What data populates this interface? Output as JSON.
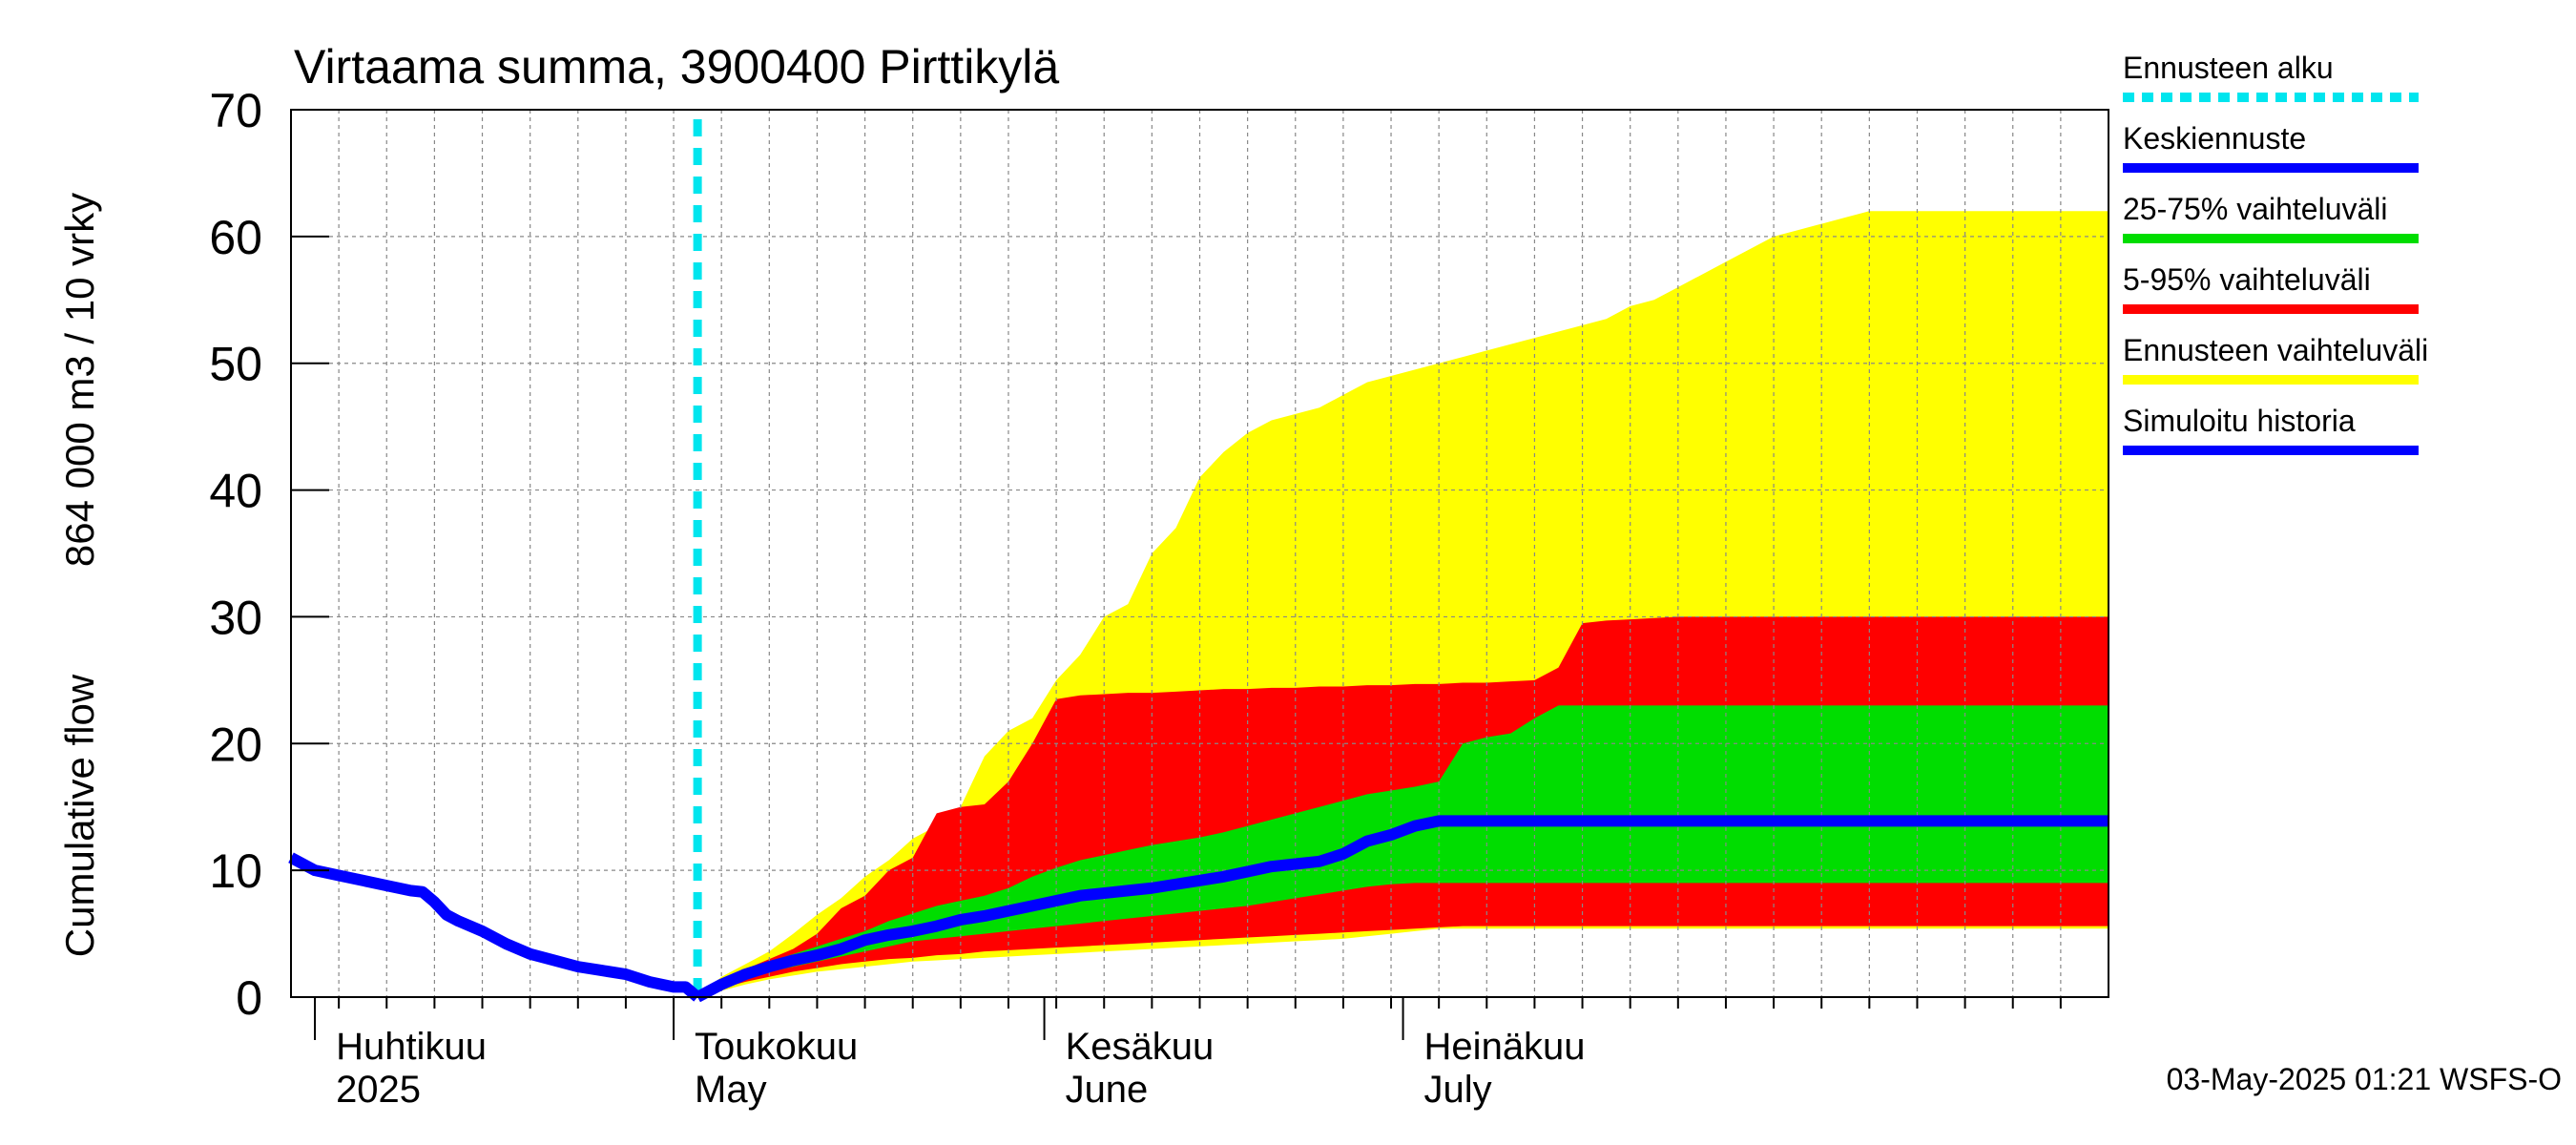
{
  "chart_data": {
    "type": "area",
    "title": "Virtaama summa, 3900400 Pirttikylä",
    "ylabel_left": "Cumulative flow",
    "ylabel_right": "864 000 m3 / 10 vrky",
    "ylim": [
      0,
      70
    ],
    "yticks": [
      0,
      10,
      20,
      30,
      40,
      50,
      60,
      70
    ],
    "xlim_days": [
      -32,
      120
    ],
    "month_labels": [
      {
        "day": -30,
        "fi": "Huhtikuu",
        "en": "2025"
      },
      {
        "day": 0,
        "fi": "Toukokuu",
        "en": "May"
      },
      {
        "day": 31,
        "fi": "Kesäkuu",
        "en": "June"
      },
      {
        "day": 61,
        "fi": "Heinäkuu",
        "en": "July"
      }
    ],
    "forecast_start_day": 2,
    "timestamp": "03-May-2025 01:21 WSFS-O",
    "colors": {
      "forecast_start": "#00e5ee",
      "mean": "#0000ff",
      "p25_75": "#00dd00",
      "p5_95": "#ff0000",
      "range": "#ffff00",
      "history": "#0000ff"
    },
    "legend": [
      {
        "label": "Ennusteen alku",
        "key": "forecast_start",
        "style": "dashed"
      },
      {
        "label": "Keskiennuste",
        "key": "mean",
        "style": "solid"
      },
      {
        "label": "25-75% vaihteluväli",
        "key": "p25_75",
        "style": "solid"
      },
      {
        "label": "5-95% vaihteluväli",
        "key": "p5_95",
        "style": "solid"
      },
      {
        "label": "Ennusteen vaihteluväli",
        "key": "range",
        "style": "solid"
      },
      {
        "label": "Simuloitu historia",
        "key": "history",
        "style": "solid"
      }
    ],
    "history": {
      "x": [
        -32,
        -30,
        -28,
        -26,
        -24,
        -22,
        -21,
        -20,
        -19,
        -18,
        -16,
        -14,
        -12,
        -10,
        -8,
        -6,
        -4,
        -2,
        -1,
        0,
        1,
        2
      ],
      "y": [
        11,
        10,
        9.6,
        9.2,
        8.8,
        8.4,
        8.3,
        7.5,
        6.5,
        6,
        5.2,
        4.2,
        3.4,
        2.9,
        2.4,
        2.1,
        1.8,
        1.2,
        1,
        0.8,
        0.8,
        0
      ]
    },
    "forecast": {
      "x": [
        2,
        4,
        6,
        8,
        10,
        12,
        14,
        16,
        18,
        20,
        22,
        24,
        26,
        28,
        30,
        32,
        34,
        36,
        38,
        40,
        42,
        44,
        46,
        48,
        50,
        52,
        54,
        56,
        58,
        60,
        62,
        64,
        66,
        68,
        70,
        72,
        74,
        76,
        78,
        80,
        82,
        84,
        86,
        88,
        90,
        92,
        94,
        96,
        98,
        100,
        102,
        104,
        106,
        108,
        110,
        112,
        114,
        116,
        118,
        120
      ],
      "range_upper": [
        0,
        1.6,
        2.6,
        3.6,
        5,
        6.5,
        7.8,
        9.5,
        10.8,
        12.5,
        13.5,
        15,
        19,
        21,
        22,
        25,
        27,
        30,
        31,
        35,
        37,
        41,
        43,
        44.5,
        45.5,
        46,
        46.5,
        47.5,
        48.5,
        49,
        49.5,
        50,
        50.5,
        51,
        51.5,
        52,
        52.5,
        53,
        53.5,
        54.5,
        55,
        56,
        57,
        58,
        59,
        60,
        60.5,
        61,
        61.5,
        62,
        62,
        62,
        62,
        62,
        62,
        62,
        62,
        62,
        62,
        62
      ],
      "p95": [
        0,
        1.3,
        2.2,
        3,
        3.8,
        5,
        7,
        8,
        10,
        11,
        14.5,
        15,
        15.2,
        17,
        20,
        23.5,
        23.8,
        23.9,
        24,
        24,
        24.1,
        24.2,
        24.3,
        24.3,
        24.4,
        24.4,
        24.5,
        24.5,
        24.6,
        24.6,
        24.7,
        24.7,
        24.8,
        24.8,
        24.9,
        25,
        26,
        29.5,
        29.7,
        29.8,
        29.9,
        30,
        30,
        30,
        30,
        30,
        30,
        30,
        30,
        30,
        30,
        30,
        30,
        30,
        30,
        30,
        30,
        30,
        30,
        30
      ],
      "p75": [
        0,
        1.2,
        2,
        2.8,
        3.4,
        4,
        4.6,
        5.2,
        6,
        6.6,
        7.2,
        7.6,
        8,
        8.6,
        9.5,
        10.2,
        10.8,
        11.2,
        11.6,
        12,
        12.3,
        12.6,
        13,
        13.5,
        14,
        14.5,
        15,
        15.5,
        16,
        16.3,
        16.6,
        17,
        20,
        20.5,
        20.8,
        22,
        23,
        23,
        23,
        23,
        23,
        23,
        23,
        23,
        23,
        23,
        23,
        23,
        23,
        23,
        23,
        23,
        23,
        23,
        23,
        23,
        23,
        23,
        23,
        23
      ],
      "mean": [
        0,
        1,
        1.8,
        2.4,
        2.9,
        3.3,
        3.8,
        4.5,
        4.9,
        5.2,
        5.6,
        6.1,
        6.4,
        6.8,
        7.2,
        7.6,
        8,
        8.2,
        8.4,
        8.6,
        8.9,
        9.2,
        9.5,
        9.9,
        10.3,
        10.5,
        10.7,
        11.3,
        12.3,
        12.8,
        13.5,
        13.9,
        13.9,
        13.9,
        13.9,
        13.9,
        13.9,
        13.9,
        13.9,
        13.9,
        13.9,
        13.9,
        13.9,
        13.9,
        13.9,
        13.9,
        13.9,
        13.9,
        13.9,
        13.9,
        13.9,
        13.9,
        13.9,
        13.9,
        13.9,
        13.9,
        13.9,
        13.9,
        13.9,
        13.9
      ],
      "p25": [
        0,
        0.9,
        1.5,
        2,
        2.4,
        2.8,
        3.2,
        3.6,
        4,
        4.4,
        4.6,
        4.8,
        5,
        5.2,
        5.4,
        5.6,
        5.8,
        6,
        6.2,
        6.4,
        6.6,
        6.8,
        7,
        7.2,
        7.5,
        7.8,
        8.1,
        8.4,
        8.7,
        8.9,
        9,
        9,
        9,
        9,
        9,
        9,
        9,
        9,
        9,
        9,
        9,
        9,
        9,
        9,
        9,
        9,
        9,
        9,
        9,
        9,
        9,
        9,
        9,
        9,
        9,
        9,
        9,
        9,
        9,
        9
      ],
      "p5": [
        0,
        0.7,
        1.2,
        1.6,
        2,
        2.3,
        2.6,
        2.8,
        3,
        3.1,
        3.3,
        3.4,
        3.6,
        3.7,
        3.8,
        3.9,
        4,
        4.1,
        4.2,
        4.3,
        4.4,
        4.5,
        4.6,
        4.7,
        4.8,
        4.9,
        5,
        5.1,
        5.2,
        5.3,
        5.4,
        5.5,
        5.6,
        5.6,
        5.6,
        5.6,
        5.6,
        5.6,
        5.6,
        5.6,
        5.6,
        5.6,
        5.6,
        5.6,
        5.6,
        5.6,
        5.6,
        5.6,
        5.6,
        5.6,
        5.6,
        5.6,
        5.6,
        5.6,
        5.6,
        5.6,
        5.6,
        5.6,
        5.6,
        5.6
      ],
      "range_lower": [
        0,
        0.5,
        1,
        1.4,
        1.7,
        2,
        2.2,
        2.4,
        2.6,
        2.8,
        2.9,
        3,
        3.1,
        3.2,
        3.3,
        3.4,
        3.5,
        3.6,
        3.7,
        3.8,
        3.9,
        4,
        4.1,
        4.2,
        4.3,
        4.4,
        4.5,
        4.6,
        4.8,
        5,
        5.2,
        5.4,
        5.4,
        5.4,
        5.4,
        5.4,
        5.4,
        5.4,
        5.4,
        5.4,
        5.4,
        5.4,
        5.4,
        5.4,
        5.4,
        5.4,
        5.4,
        5.4,
        5.4,
        5.4,
        5.4,
        5.4,
        5.4,
        5.4,
        5.4,
        5.4,
        5.4,
        5.4,
        5.4,
        5.4
      ]
    }
  }
}
